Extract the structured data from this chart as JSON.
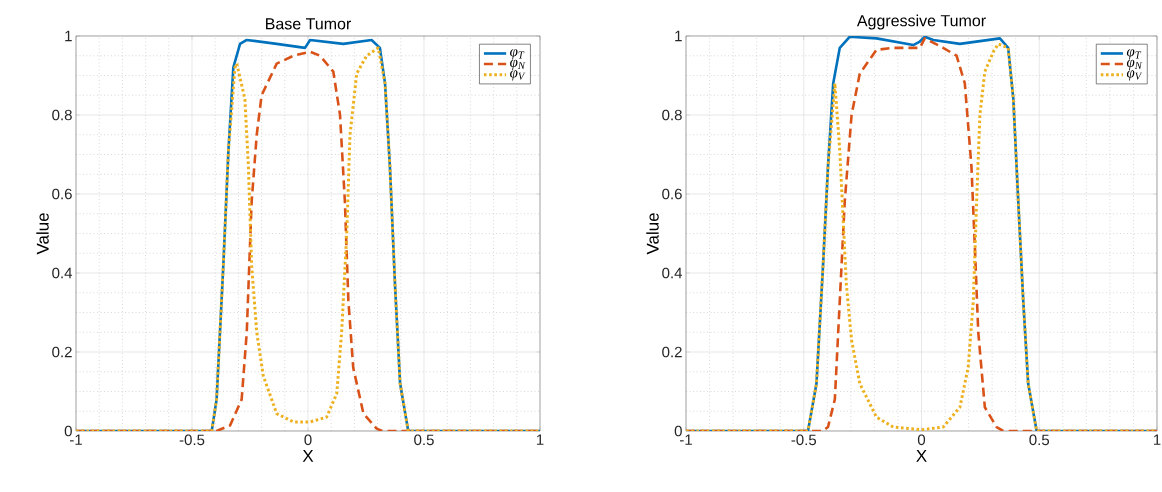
{
  "chart_data": [
    {
      "type": "line",
      "title": "Base Tumor",
      "xlabel": "X",
      "ylabel": "Value",
      "xlim": [
        -1,
        1
      ],
      "ylim": [
        0,
        1
      ],
      "xticks": [
        -1,
        -0.5,
        0,
        0.5,
        1
      ],
      "yticks": [
        0,
        0.2,
        0.4,
        0.6,
        0.8,
        1
      ],
      "grid": true,
      "legend": "top right",
      "series": [
        {
          "name": "φ$_{T}$",
          "color": "#0072bd",
          "line_style": "solid",
          "x": [
            -1,
            -0.415,
            -0.394,
            -0.365,
            -0.343,
            -0.322,
            -0.293,
            -0.264,
            -0.135,
            -0.013,
            0.009,
            0.152,
            0.274,
            0.31,
            0.332,
            0.353,
            0.375,
            0.397,
            0.432,
            1
          ],
          "values": [
            0,
            0,
            0.08,
            0.42,
            0.71,
            0.92,
            0.98,
            0.99,
            0.98,
            0.97,
            0.99,
            0.98,
            0.99,
            0.97,
            0.88,
            0.67,
            0.37,
            0.12,
            0,
            0
          ]
        },
        {
          "name": "φ$_{N}$",
          "color": "#d95319",
          "line_style": "dashed",
          "x": [
            -1,
            -0.394,
            -0.336,
            -0.286,
            -0.264,
            -0.243,
            -0.221,
            -0.2,
            -0.135,
            -0.063,
            0.009,
            0.052,
            0.109,
            0.138,
            0.159,
            0.174,
            0.195,
            0.239,
            0.296,
            0.32,
            1
          ],
          "values": [
            0,
            0,
            0.014,
            0.08,
            0.25,
            0.58,
            0.75,
            0.85,
            0.93,
            0.95,
            0.96,
            0.95,
            0.91,
            0.8,
            0.58,
            0.33,
            0.16,
            0.044,
            0.006,
            0,
            0
          ]
        },
        {
          "name": "φ$_{V}$",
          "color": "#edb120",
          "line_style": "dotted",
          "x": [
            -1,
            -0.415,
            -0.394,
            -0.365,
            -0.343,
            -0.315,
            -0.307,
            -0.272,
            -0.257,
            -0.243,
            -0.221,
            -0.193,
            -0.135,
            -0.063,
            0.009,
            0.08,
            0.124,
            0.145,
            0.167,
            0.181,
            0.21,
            0.253,
            0.303,
            0.332,
            0.353,
            0.375,
            0.397,
            0.432,
            1
          ],
          "values": [
            0,
            0,
            0.08,
            0.42,
            0.71,
            0.92,
            0.93,
            0.84,
            0.67,
            0.42,
            0.25,
            0.14,
            0.044,
            0.023,
            0.023,
            0.035,
            0.095,
            0.25,
            0.5,
            0.75,
            0.905,
            0.95,
            0.97,
            0.88,
            0.67,
            0.37,
            0.12,
            0,
            0
          ]
        }
      ]
    },
    {
      "type": "line",
      "title": "Aggressive Tumor",
      "xlabel": "X",
      "ylabel": "Value",
      "xlim": [
        -1,
        1
      ],
      "ylim": [
        0,
        1
      ],
      "xticks": [
        -1,
        -0.5,
        0,
        0.5,
        1
      ],
      "yticks": [
        0,
        0.2,
        0.4,
        0.6,
        0.8,
        1
      ],
      "grid": true,
      "legend": "top right",
      "series": [
        {
          "name": "φ$_{T}$",
          "color": "#0072bd",
          "line_style": "solid",
          "x": [
            -1,
            -0.482,
            -0.446,
            -0.418,
            -0.397,
            -0.375,
            -0.347,
            -0.305,
            -0.191,
            -0.035,
            -0.007,
            0.014,
            0.05,
            0.163,
            0.333,
            0.368,
            0.39,
            0.411,
            0.432,
            0.453,
            0.489,
            1
          ],
          "values": [
            0,
            0,
            0.12,
            0.42,
            0.67,
            0.88,
            0.97,
            0.998,
            0.994,
            0.977,
            0.986,
            0.998,
            0.99,
            0.98,
            0.994,
            0.97,
            0.84,
            0.58,
            0.33,
            0.12,
            0,
            0
          ]
        },
        {
          "name": "φ$_{N}$",
          "color": "#d95319",
          "line_style": "dashed",
          "x": [
            -1,
            -0.42,
            -0.397,
            -0.368,
            -0.347,
            -0.326,
            -0.297,
            -0.262,
            -0.191,
            -0.12,
            -0.035,
            -0.007,
            0.014,
            0.092,
            0.149,
            0.184,
            0.212,
            0.227,
            0.241,
            0.269,
            0.319,
            0.347,
            1
          ],
          "values": [
            0,
            0,
            0.01,
            0.08,
            0.33,
            0.58,
            0.8,
            0.905,
            0.965,
            0.97,
            0.97,
            0.97,
            0.994,
            0.97,
            0.95,
            0.88,
            0.67,
            0.46,
            0.25,
            0.06,
            0.01,
            0,
            0
          ]
        },
        {
          "name": "φ$_{V}$",
          "color": "#edb120",
          "line_style": "dotted",
          "x": [
            -1,
            -0.482,
            -0.446,
            -0.418,
            -0.397,
            -0.368,
            -0.347,
            -0.333,
            -0.319,
            -0.297,
            -0.262,
            -0.191,
            -0.12,
            0,
            0.092,
            0.163,
            0.198,
            0.22,
            0.234,
            0.248,
            0.269,
            0.305,
            0.326,
            0.368,
            0.39,
            0.411,
            0.432,
            0.453,
            0.489,
            1
          ],
          "values": [
            0,
            0,
            0.12,
            0.42,
            0.67,
            0.88,
            0.71,
            0.54,
            0.37,
            0.23,
            0.12,
            0.035,
            0.01,
            0.003,
            0.01,
            0.06,
            0.16,
            0.33,
            0.58,
            0.8,
            0.91,
            0.96,
            0.98,
            0.97,
            0.84,
            0.58,
            0.33,
            0.12,
            0,
            0
          ]
        }
      ]
    }
  ]
}
